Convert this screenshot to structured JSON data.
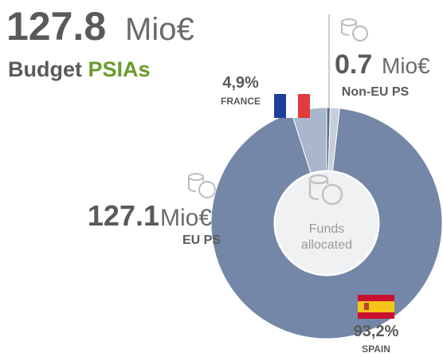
{
  "chart_data": {
    "type": "pie",
    "categories": [
      null,
      null,
      "SPAIN",
      "FRANCE"
    ],
    "values": [
      0.5,
      1.3,
      93.2,
      4.9
    ],
    "value_labels": [
      null,
      null,
      "93,2%",
      "4,9%"
    ],
    "colors": [
      "#5e6d8a",
      "#c6cedb",
      "#7587a8",
      "#a9b6cb"
    ],
    "center_label": [
      "Funds",
      "allocated"
    ]
  },
  "figures": {
    "total": {
      "amount": "127.8",
      "unit": "Mio€",
      "label": [
        "Budget",
        "PSIAs"
      ]
    },
    "non_eu": {
      "amount": "0.7",
      "unit": "Mio€",
      "label": "Non-EU PS"
    },
    "eu": {
      "amount": "127.1",
      "unit": "Mio€",
      "label": "EU PS"
    }
  }
}
